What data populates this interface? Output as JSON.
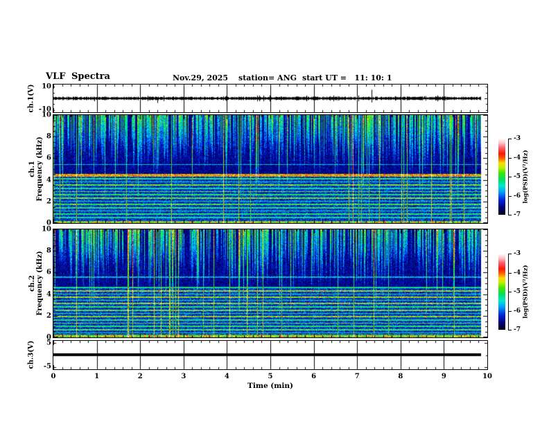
{
  "header": {
    "title": "VLF Spectra",
    "date": "Nov.29, 2025",
    "station": "station= ANG",
    "start_ut": "start UT =   11: 10: 1"
  },
  "xaxis": {
    "label": "Time (min)",
    "ticks": [
      "0",
      "1",
      "2",
      "3",
      "4",
      "5",
      "6",
      "7",
      "8",
      "9",
      "10"
    ]
  },
  "panels": {
    "ch1v": {
      "label": "ch.1(V)",
      "ytick_labels": [
        "10",
        "-10"
      ]
    },
    "spec1": {
      "label_channel": "ch.1",
      "label_axis": "Frequency (kHz)",
      "yticks": [
        "10",
        "8",
        "6",
        "4",
        "2",
        "0"
      ]
    },
    "spec2": {
      "label_channel": "ch.2",
      "label_axis": "Frequency (kHz)",
      "yticks": [
        "10",
        "8",
        "6",
        "4",
        "2",
        "0"
      ]
    },
    "ch3v": {
      "label": "ch.3(V)",
      "ytick_labels": [
        "5",
        "-5"
      ]
    }
  },
  "colorbars": {
    "label": "log(PSD)(V²/Hz)",
    "ticks": [
      "-3",
      "-4",
      "-5",
      "-6",
      "-7"
    ]
  },
  "colors": {
    "axis": "#000000",
    "background": "#ffffff",
    "palette": [
      [
        0,
        "#000010"
      ],
      [
        0.1,
        "#000080"
      ],
      [
        0.2,
        "#0028e0"
      ],
      [
        0.3,
        "#00a0ff"
      ],
      [
        0.38,
        "#00e8d0"
      ],
      [
        0.46,
        "#00e060"
      ],
      [
        0.55,
        "#40e800"
      ],
      [
        0.62,
        "#c0f000"
      ],
      [
        0.68,
        "#ffd800"
      ],
      [
        0.74,
        "#ff6000"
      ],
      [
        0.8,
        "#ff1800"
      ],
      [
        0.88,
        "#ff6070"
      ],
      [
        0.94,
        "#ffc0c8"
      ],
      [
        1,
        "#ffffff"
      ]
    ]
  },
  "chart_data": [
    {
      "type": "line",
      "panel": "ch.1(V) waveform",
      "x_range_min": [
        0,
        10
      ],
      "y_range_V": [
        -10,
        10
      ],
      "y_axis_full_range_V": [
        -12,
        12
      ],
      "data_end_min": 9.85,
      "description": "continuous broadband noise band of ~±1 V centred on 0 V with isolated impulses",
      "noise_amplitude_V": [
        0.5,
        1.5
      ],
      "spikes": [
        {
          "t_min": 0.95,
          "v_V": -2.5
        },
        {
          "t_min": 2.4,
          "v_V": -4.0
        },
        {
          "t_min": 7.33,
          "v_V": 7.5
        },
        {
          "t_min": 7.33,
          "v_V": -3.5
        },
        {
          "t_min": 8.55,
          "v_V": 2.0
        }
      ],
      "seed": 1111
    },
    {
      "type": "heatmap",
      "panel": "ch.1 VLF spectrogram",
      "x_range_min": [
        0,
        10
      ],
      "y_range_kHz": [
        0,
        10
      ],
      "z_scale": "log(PSD)(V²/Hz)",
      "z_range": [
        -7,
        -3
      ],
      "data_end_min": 9.85,
      "features": {
        "impulsive_streaks": "dense vertical sferic streaks, brightest 10 kHz fading toward ~5 kHz, occasional red cores",
        "strong_band_kHz": 4.45,
        "harmonic_lines": [
          [
            5.45,
            0.28,
            0.05
          ],
          [
            4.45,
            0.62,
            0.12
          ],
          [
            4.15,
            0.35,
            0.05
          ],
          [
            3.85,
            0.3,
            0.05
          ],
          [
            3.55,
            0.45,
            0.05
          ],
          [
            3.25,
            0.3,
            0.05
          ],
          [
            2.95,
            0.45,
            0.06
          ],
          [
            2.65,
            0.35,
            0.05
          ],
          [
            2.35,
            0.45,
            0.05
          ],
          [
            2.05,
            0.3,
            0.05
          ],
          [
            1.75,
            0.4,
            0.06
          ],
          [
            1.45,
            0.35,
            0.05
          ],
          [
            1.15,
            0.3,
            0.05
          ],
          [
            0.85,
            0.35,
            0.05
          ],
          [
            0.55,
            0.3,
            0.05
          ]
        ],
        "bottom_noise_band_kHz": [
          0,
          0.25
        ]
      },
      "seed": 2222
    },
    {
      "type": "heatmap",
      "panel": "ch.2 VLF spectrogram",
      "x_range_min": [
        0,
        10
      ],
      "y_range_kHz": [
        0,
        10
      ],
      "z_scale": "log(PSD)(V²/Hz)",
      "z_range": [
        -7,
        -3
      ],
      "data_end_min": 9.85,
      "features": {
        "impulsive_streaks": "dense vertical sferic streaks, brightest 10 kHz fading toward ~6 kHz",
        "harmonic_lines": [
          [
            5.6,
            0.25,
            0.05
          ],
          [
            4.65,
            0.4,
            0.05
          ],
          [
            4.35,
            0.5,
            0.06
          ],
          [
            4.05,
            0.35,
            0.05
          ],
          [
            3.75,
            0.5,
            0.05
          ],
          [
            3.45,
            0.35,
            0.05
          ],
          [
            3.15,
            0.5,
            0.06
          ],
          [
            2.85,
            0.35,
            0.05
          ],
          [
            2.55,
            0.45,
            0.05
          ],
          [
            2.25,
            0.35,
            0.05
          ],
          [
            1.95,
            0.5,
            0.06
          ],
          [
            1.65,
            0.35,
            0.05
          ],
          [
            1.35,
            0.45,
            0.05
          ],
          [
            1.05,
            0.35,
            0.05
          ],
          [
            0.75,
            0.4,
            0.05
          ],
          [
            0.45,
            0.3,
            0.05
          ]
        ],
        "bottom_noise_band_kHz": [
          0,
          0.3
        ]
      },
      "seed": 3333
    },
    {
      "type": "line",
      "panel": "ch.3(V)",
      "x_range_min": [
        0,
        10
      ],
      "y_range_V": [
        -5,
        5
      ],
      "y_axis_full_range_V": [
        -6,
        6
      ],
      "data_end_min": 9.85,
      "description": "flat constant trace (thick line) just above 0 V",
      "constant_value_V": 0.25,
      "seed": 4444
    }
  ]
}
